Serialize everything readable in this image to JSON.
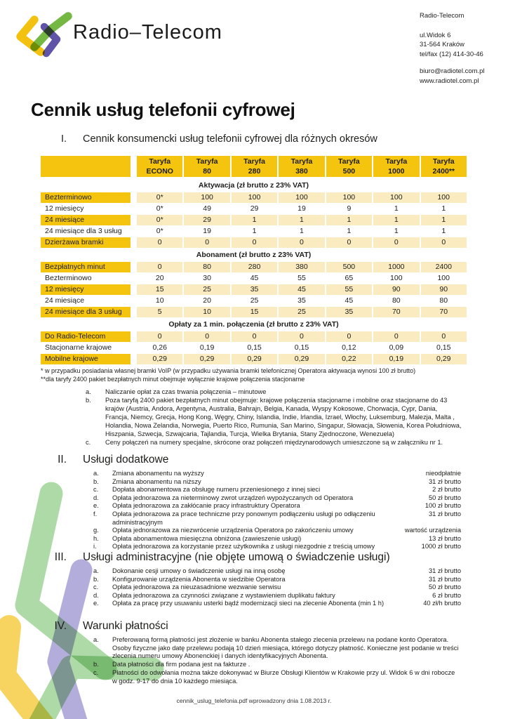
{
  "header": {
    "wordmark": "Radio–Telecom",
    "contact": {
      "name": "Radio-Telecom",
      "address": [
        "ul.Widok 6",
        "31-564 Kraków",
        "tel/fax (12) 414-30-46"
      ],
      "online": [
        "biuro@radiotel.com.pl",
        "www.radiotel.com.pl"
      ]
    }
  },
  "title": "Cennik usług telefonii cyfrowej",
  "section1": {
    "numeral": "I.",
    "heading": "Cennik konsumencki usług telefonii cyfrowej dla różnych okresów",
    "table": {
      "header_word": "Taryfa",
      "tariffs": [
        "ECONO",
        "80",
        "280",
        "380",
        "500",
        "1000",
        "2400**"
      ],
      "groups": [
        {
          "title": "Aktywacja (zł brutto z 23% VAT)",
          "rows": [
            {
              "label": "Bezterminowo",
              "values": [
                "0*",
                "100",
                "100",
                "100",
                "100",
                "100",
                "100"
              ],
              "hl": true
            },
            {
              "label": "12 miesięcy",
              "values": [
                "0*",
                "49",
                "29",
                "19",
                "9",
                "1",
                "1"
              ],
              "hl": false
            },
            {
              "label": "24 miesiące",
              "values": [
                "0*",
                "29",
                "1",
                "1",
                "1",
                "1",
                "1"
              ],
              "hl": true
            },
            {
              "label": "24 miesiące dla 3 usług",
              "values": [
                "0*",
                "19",
                "1",
                "1",
                "1",
                "1",
                "1"
              ],
              "hl": false
            },
            {
              "label": "Dzierżawa bramki",
              "values": [
                "0",
                "0",
                "0",
                "0",
                "0",
                "0",
                "0"
              ],
              "hl": true
            }
          ]
        },
        {
          "title": "Abonament (zł brutto z 23% VAT)",
          "rows": [
            {
              "label": "Bezpłatnych minut",
              "values": [
                "0",
                "80",
                "280",
                "380",
                "500",
                "1000",
                "2400"
              ],
              "hl": true
            },
            {
              "label": "Bezterminowo",
              "values": [
                "20",
                "30",
                "45",
                "55",
                "65",
                "100",
                "100"
              ],
              "hl": false
            },
            {
              "label": "12 miesięcy",
              "values": [
                "15",
                "25",
                "35",
                "45",
                "55",
                "90",
                "90"
              ],
              "hl": true
            },
            {
              "label": "24 miesiące",
              "values": [
                "10",
                "20",
                "25",
                "35",
                "45",
                "80",
                "80"
              ],
              "hl": false
            },
            {
              "label": "24 miesiące dla 3 usług",
              "values": [
                "5",
                "10",
                "15",
                "25",
                "35",
                "70",
                "70"
              ],
              "hl": true
            }
          ]
        },
        {
          "title": "Opłaty za 1 min. połączenia (zł brutto z 23% VAT)",
          "rows": [
            {
              "label": "Do Radio-Telecom",
              "values": [
                "0",
                "0",
                "0",
                "0",
                "0",
                "0",
                "0"
              ],
              "hl": true
            },
            {
              "label": "Stacjonarne krajowe",
              "values": [
                "0,26",
                "0,19",
                "0,15",
                "0,15",
                "0,12",
                "0,09",
                "0,15"
              ],
              "hl": false
            },
            {
              "label": "Mobilne krajowe",
              "values": [
                "0,29",
                "0,29",
                "0,29",
                "0,29",
                "0,22",
                "0,19",
                "0,29"
              ],
              "hl": true
            }
          ]
        }
      ],
      "footnotes": [
        "* w przypadku posiadania własnej bramki VoIP (w przypadku używania bramki telefonicznej Operatora aktywacja wynosi 100 zł brutto)",
        "**dla taryfy 2400 pakiet bezpłatnych minut obejmuje wyłącznie krajowe połączenia stacjonarne"
      ]
    },
    "notes": [
      {
        "letter": "a.",
        "text": "Naliczanie opłat za czas trwania połączenia – minutowe"
      },
      {
        "letter": "b.",
        "text": "Poza taryfą 2400 pakiet bezpłatnych minut obejmuje: krajowe połączenia stacjonarne i mobilne oraz stacjonarne do 43 krajów (Austria, Andora, Argentyna, Australia, Bahrajn, Belgia, Kanada, Wyspy Kokosowe, Chorwacja, Cypr, Dania, Francja, Niemcy, Grecja, Hong Kong, Węgry, Chiny, Islandia, Indie, Irlandia, Izrael, Włochy, Luksemburg, Malezja, Malta , Holandia, Nowa Zelandia, Norwegia, Puerto Rico, Rumunia, San Marino, Singapur, Słowacja, Słowenia, Korea Południowa, Hiszpania, Szwecja, Szwajcaria, Tajlandia, Turcja, Wielka Brytania, Stany Zjednoczone, Wenezuela)"
      },
      {
        "letter": "c.",
        "text": "Ceny połączeń na numery specjalne, skrócone oraz połączeń międzynarodowych umieszczone są w załączniku nr 1."
      }
    ]
  },
  "section2": {
    "numeral": "II.",
    "heading": "Usługi dodatkowe",
    "items": [
      {
        "letter": "a.",
        "text": "Zmiana abonamentu na wyższy",
        "price": "nieodpłatnie"
      },
      {
        "letter": "b.",
        "text": "Zmiana abonamentu na niższy",
        "price": "31 zł brutto"
      },
      {
        "letter": "c.",
        "text": "Dopłata abonamentowa za obsługę numeru przeniesionego z innej sieci",
        "price": "2 zł brutto"
      },
      {
        "letter": "d.",
        "text": "Opłata jednorazowa za nieterminowy zwrot urządzeń wypożyczanych od Operatora",
        "price": "50 zł brutto"
      },
      {
        "letter": "e.",
        "text": "Opłata jednorazowa za zakłócanie pracy infrastruktury Operatora",
        "price": "100 zł brutto"
      },
      {
        "letter": "f.",
        "text": "Opłata jednorazowa za prace techniczne przy ponownym podłączeniu usługi po odłączeniu administracyjnym",
        "price": "31 zł brutto"
      },
      {
        "letter": "g.",
        "text": "Opłata jednorazowa za niezwrócenie urządzenia Operatora po zakończeniu umowy",
        "price": "wartość urządzenia"
      },
      {
        "letter": "h.",
        "text": "Opłata abonamentowa miesięczna obniżona (zawieszenie usługi)",
        "price": "13 zł brutto"
      },
      {
        "letter": "i.",
        "text": "Opłata jednorazowa za korzystanie przez użytkownika z usługi niezgodnie z treścią umowy",
        "price": "1000 zł brutto"
      }
    ]
  },
  "section3": {
    "numeral": "III.",
    "heading": "Usługi administracyjne (nie objęte umową o świadczenie usługi)",
    "items": [
      {
        "letter": "a.",
        "text": "Dokonanie cesji umowy o świadczenie usługi na inną osobę",
        "price": "31 zł brutto"
      },
      {
        "letter": "b.",
        "text": "Konfigurowanie urządzenia Abonenta w siedzibie Operatora",
        "price": "31 zł brutto"
      },
      {
        "letter": "c.",
        "text": "Opłata jednorazowa za nieuzasadnione wezwanie serwisu",
        "price": "50 zł brutto"
      },
      {
        "letter": "d.",
        "text": "Opłata jednorazowa za czynności związane z wystawieniem duplikatu faktury",
        "price": "6 zł brutto"
      },
      {
        "letter": "e.",
        "text": "Opłata za pracę przy usuwaniu usterki bądź modernizacji sieci na zlecenie Abonenta (min 1 h)",
        "price": "40 zł/h brutto"
      }
    ]
  },
  "section4": {
    "numeral": "IV.",
    "heading": "Warunki płatności",
    "items": [
      {
        "letter": "a.",
        "text": "Preferowaną formą płatności jest złożenie w banku Abonenta stałego zlecenia przelewu na podane konto Operatora. Osoby fizyczne jako datę przelewu podają 10 dzień miesiąca, którego dotyczy płatność. Konieczne jest podanie  w treści zlecenia numeru umowy Abonenckiej i danych identyfikacyjnych Abonenta."
      },
      {
        "letter": "b.",
        "text": "Data płatności dla firm podana jest na fakturze ."
      },
      {
        "letter": "c.",
        "text": "Płatności do odwołania można także dokonywać w Biurze Obsługi Klientów w Krakowie przy ul. Widok 6 w dni robocze w godz. 9-17 do dnia 10 każdego miesiąca."
      }
    ]
  },
  "footer": "cennik_uslug_telefonia.pdf wprowadzony dnia 1.08.2013 r.",
  "colors": {
    "table_yellow": "#F5C40F",
    "table_pale": "#FAECC0",
    "logo_yellow": "#F3C211",
    "logo_green": "#74B843",
    "logo_purple": "#5F54A8",
    "wm_green": "#A5D69E",
    "wm_purple": "#ABA5D8",
    "wm_yellow": "#F7D04F"
  }
}
